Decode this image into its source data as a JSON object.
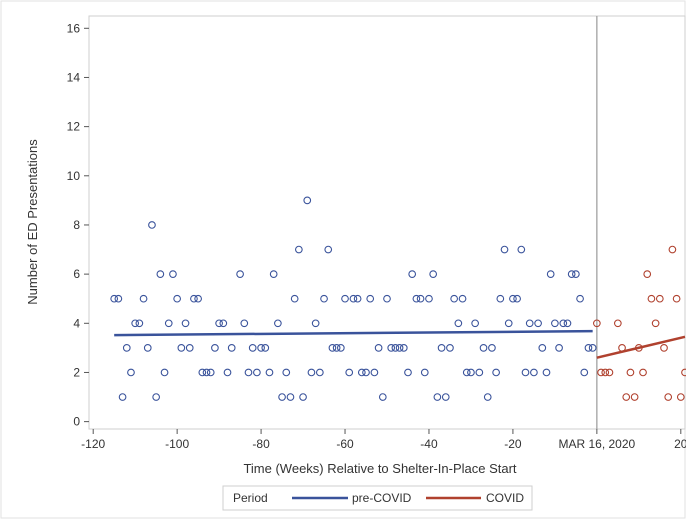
{
  "chart_data": {
    "type": "scatter",
    "xlabel": "Time (Weeks) Relative to Shelter-In-Place Start",
    "ylabel": "Number of ED Presentations",
    "xlim": [
      -121,
      21
    ],
    "ylim": [
      -0.3,
      16.5
    ],
    "x_ticks": [
      {
        "value": -120,
        "label": "-120"
      },
      {
        "value": -100,
        "label": "-100"
      },
      {
        "value": -80,
        "label": "-80"
      },
      {
        "value": -60,
        "label": "-60"
      },
      {
        "value": -40,
        "label": "-40"
      },
      {
        "value": -20,
        "label": "-20"
      },
      {
        "value": 0,
        "label": "MAR 16, 2020"
      },
      {
        "value": 20,
        "label": "20"
      }
    ],
    "y_ticks": [
      0,
      2,
      4,
      6,
      8,
      10,
      12,
      14,
      16
    ],
    "reference_line_x": 0,
    "legend": {
      "title": "Period",
      "placement": "bottom",
      "entries": [
        {
          "label": "pre-COVID",
          "color": "#3a539b"
        },
        {
          "label": "COVID",
          "color": "#b0412e"
        }
      ]
    },
    "series": [
      {
        "name": "pre-COVID",
        "color": "#3a539b",
        "points": [
          [
            -115,
            5
          ],
          [
            -114,
            5
          ],
          [
            -113,
            1
          ],
          [
            -112,
            3
          ],
          [
            -111,
            2
          ],
          [
            -110,
            4
          ],
          [
            -109,
            4
          ],
          [
            -108,
            5
          ],
          [
            -107,
            3
          ],
          [
            -106,
            8
          ],
          [
            -105,
            1
          ],
          [
            -104,
            6
          ],
          [
            -103,
            2
          ],
          [
            -102,
            4
          ],
          [
            -101,
            6
          ],
          [
            -100,
            5
          ],
          [
            -99,
            3
          ],
          [
            -98,
            4
          ],
          [
            -97,
            3
          ],
          [
            -96,
            5
          ],
          [
            -95,
            5
          ],
          [
            -94,
            2
          ],
          [
            -93,
            2
          ],
          [
            -92,
            2
          ],
          [
            -91,
            3
          ],
          [
            -90,
            4
          ],
          [
            -89,
            4
          ],
          [
            -88,
            2
          ],
          [
            -87,
            3
          ],
          [
            -85,
            6
          ],
          [
            -84,
            4
          ],
          [
            -83,
            2
          ],
          [
            -82,
            3
          ],
          [
            -81,
            2
          ],
          [
            -80,
            3
          ],
          [
            -79,
            3
          ],
          [
            -78,
            2
          ],
          [
            -77,
            6
          ],
          [
            -76,
            4
          ],
          [
            -75,
            1
          ],
          [
            -74,
            2
          ],
          [
            -73,
            1
          ],
          [
            -72,
            5
          ],
          [
            -71,
            7
          ],
          [
            -70,
            1
          ],
          [
            -69,
            9
          ],
          [
            -68,
            2
          ],
          [
            -67,
            4
          ],
          [
            -66,
            2
          ],
          [
            -65,
            5
          ],
          [
            -64,
            7
          ],
          [
            -63,
            3
          ],
          [
            -62,
            3
          ],
          [
            -61,
            3
          ],
          [
            -60,
            5
          ],
          [
            -59,
            2
          ],
          [
            -58,
            5
          ],
          [
            -57,
            5
          ],
          [
            -56,
            2
          ],
          [
            -55,
            2
          ],
          [
            -54,
            5
          ],
          [
            -53,
            2
          ],
          [
            -52,
            3
          ],
          [
            -51,
            1
          ],
          [
            -50,
            5
          ],
          [
            -49,
            3
          ],
          [
            -48,
            3
          ],
          [
            -47,
            3
          ],
          [
            -46,
            3
          ],
          [
            -45,
            2
          ],
          [
            -44,
            6
          ],
          [
            -43,
            5
          ],
          [
            -42,
            5
          ],
          [
            -41,
            2
          ],
          [
            -40,
            5
          ],
          [
            -39,
            6
          ],
          [
            -38,
            1
          ],
          [
            -37,
            3
          ],
          [
            -36,
            1
          ],
          [
            -35,
            3
          ],
          [
            -34,
            5
          ],
          [
            -33,
            4
          ],
          [
            -32,
            5
          ],
          [
            -31,
            2
          ],
          [
            -30,
            2
          ],
          [
            -29,
            4
          ],
          [
            -28,
            2
          ],
          [
            -27,
            3
          ],
          [
            -26,
            1
          ],
          [
            -25,
            3
          ],
          [
            -24,
            2
          ],
          [
            -23,
            5
          ],
          [
            -22,
            7
          ],
          [
            -21,
            4
          ],
          [
            -20,
            5
          ],
          [
            -19,
            5
          ],
          [
            -18,
            7
          ],
          [
            -17,
            2
          ],
          [
            -16,
            4
          ],
          [
            -15,
            2
          ],
          [
            -14,
            4
          ],
          [
            -13,
            3
          ],
          [
            -12,
            2
          ],
          [
            -11,
            6
          ],
          [
            -10,
            4
          ],
          [
            -9,
            3
          ],
          [
            -8,
            4
          ],
          [
            -7,
            4
          ],
          [
            -6,
            6
          ],
          [
            -5,
            6
          ],
          [
            -4,
            5
          ],
          [
            -3,
            2
          ],
          [
            -2,
            3
          ],
          [
            -1,
            3
          ]
        ],
        "trend": [
          [
            -115,
            3.52
          ],
          [
            -1,
            3.68
          ]
        ]
      },
      {
        "name": "COVID",
        "color": "#b0412e",
        "points": [
          [
            0,
            4
          ],
          [
            1,
            2
          ],
          [
            2,
            2
          ],
          [
            3,
            2
          ],
          [
            5,
            4
          ],
          [
            6,
            3
          ],
          [
            7,
            1
          ],
          [
            8,
            2
          ],
          [
            9,
            1
          ],
          [
            10,
            3
          ],
          [
            11,
            2
          ],
          [
            12,
            6
          ],
          [
            13,
            5
          ],
          [
            14,
            4
          ],
          [
            15,
            5
          ],
          [
            16,
            3
          ],
          [
            17,
            1
          ],
          [
            18,
            7
          ],
          [
            19,
            5
          ],
          [
            20,
            1
          ],
          [
            21,
            2
          ]
        ],
        "trend": [
          [
            0,
            2.6
          ],
          [
            21,
            3.45
          ]
        ]
      }
    ]
  }
}
